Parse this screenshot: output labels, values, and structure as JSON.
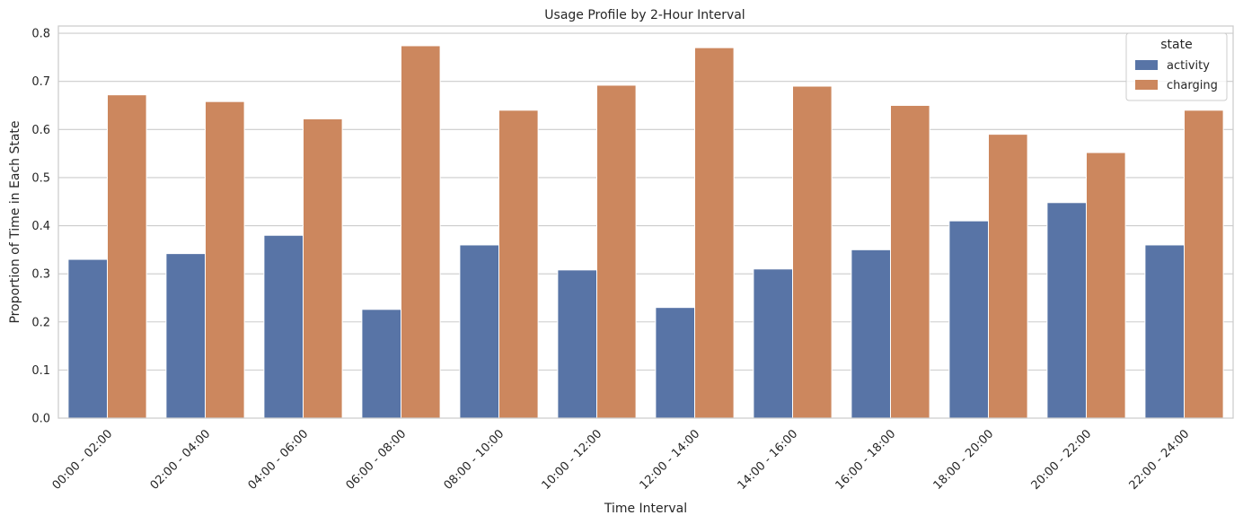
{
  "chart_data": {
    "type": "bar",
    "title": "Usage Profile by 2-Hour Interval",
    "xlabel": "Time Interval",
    "ylabel": "Proportion of Time in Each State",
    "categories": [
      "00:00 - 02:00",
      "02:00 - 04:00",
      "04:00 - 06:00",
      "06:00 - 08:00",
      "08:00 - 10:00",
      "10:00 - 12:00",
      "12:00 - 14:00",
      "14:00 - 16:00",
      "16:00 - 18:00",
      "18:00 - 20:00",
      "20:00 - 22:00",
      "22:00 - 24:00"
    ],
    "series": [
      {
        "name": "activity",
        "color": "#5874A6",
        "values": [
          0.33,
          0.342,
          0.38,
          0.226,
          0.36,
          0.308,
          0.23,
          0.31,
          0.35,
          0.41,
          0.448,
          0.36
        ]
      },
      {
        "name": "charging",
        "color": "#CC875E",
        "values": [
          0.672,
          0.658,
          0.622,
          0.774,
          0.64,
          0.692,
          0.77,
          0.69,
          0.65,
          0.59,
          0.552,
          0.64
        ]
      }
    ],
    "ylim": [
      0,
      0.815
    ],
    "yticks": [
      "0.0",
      "0.1",
      "0.2",
      "0.3",
      "0.4",
      "0.5",
      "0.6",
      "0.7",
      "0.8"
    ],
    "grid": "horizontal",
    "legend": {
      "title": "state",
      "placement": "top-right"
    }
  }
}
